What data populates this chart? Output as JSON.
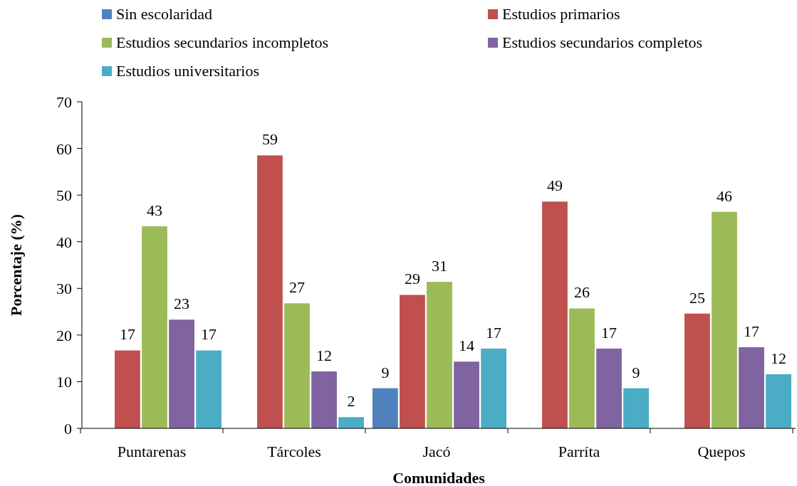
{
  "chart_data": {
    "type": "bar",
    "xlabel": "Comunidades",
    "ylabel": "Porcentaje (%)",
    "categories": [
      "Puntarenas",
      "Tárcoles",
      "Jacó",
      "Parríta",
      "Quepos"
    ],
    "series": [
      {
        "name": "Sin escolaridad",
        "color": "#4f81bd",
        "values": [
          null,
          null,
          8.6,
          null,
          null
        ],
        "value_labels": [
          null,
          null,
          "9",
          null,
          null
        ]
      },
      {
        "name": "Estudios primarios",
        "color": "#c0504d",
        "values": [
          16.7,
          58.5,
          28.6,
          48.6,
          24.6
        ],
        "value_labels": [
          "17",
          "59",
          "29",
          "49",
          "25"
        ]
      },
      {
        "name": "Estudios secundarios incompletos",
        "color": "#9bbb59",
        "values": [
          43.3,
          26.8,
          31.4,
          25.7,
          46.4
        ],
        "value_labels": [
          "43",
          "27",
          "31",
          "26",
          "46"
        ]
      },
      {
        "name": "Estudios secundarios completos",
        "color": "#8064a2",
        "values": [
          23.3,
          12.2,
          14.3,
          17.1,
          17.4
        ],
        "value_labels": [
          "23",
          "12",
          "14",
          "17",
          "17"
        ]
      },
      {
        "name": "Estudios universitarios",
        "color": "#4bacc6",
        "values": [
          16.7,
          2.4,
          17.1,
          8.6,
          11.6
        ],
        "value_labels": [
          "17",
          "2",
          "17",
          "9",
          "12"
        ]
      }
    ],
    "ylim": [
      0,
      70
    ],
    "yticks": [
      0,
      10,
      20,
      30,
      40,
      50,
      60,
      70
    ],
    "legend": "top"
  }
}
